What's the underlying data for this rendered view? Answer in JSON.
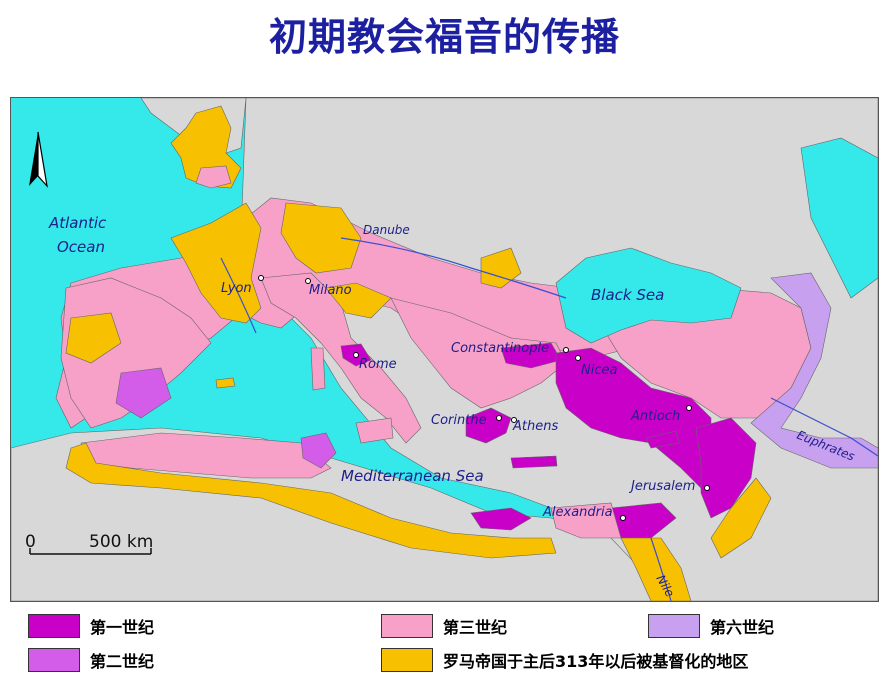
{
  "title": "初期教会福音的传播",
  "map": {
    "seas": {
      "atlantic": [
        "Atlantic",
        "Ocean"
      ],
      "black_sea": "Black Sea",
      "mediterranean": "Mediterranean Sea"
    },
    "rivers": {
      "danube": "Danube",
      "euphrates": "Euphrates",
      "nile": "Nile"
    },
    "cities": {
      "lyon": "Lyon",
      "milano": "Milano",
      "rome": "Rome",
      "constantinople": "Constantinople",
      "nicea": "Nicea",
      "corinthe": "Corinthe",
      "athens": "Athens",
      "antioch": "Antioch",
      "jerusalem": "Jerusalem",
      "alexandria": "Alexandria"
    },
    "scale": {
      "zero": "0",
      "distance": "500 km"
    },
    "colors": {
      "water": "#35e8ea",
      "land": "#d8d8d8",
      "river": "#3a4fd0",
      "first_century": "#c800c8",
      "second_century": "#d35ce8",
      "third_century": "#f7a0c8",
      "sixth_century": "#c8a0f0",
      "after_313": "#f7c000"
    }
  },
  "legend": {
    "first_century": "第一世纪",
    "second_century": "第二世纪",
    "third_century": "第三世纪",
    "sixth_century": "第六世纪",
    "after_313": "罗马帝国于主后313年以后被基督化的地区"
  }
}
